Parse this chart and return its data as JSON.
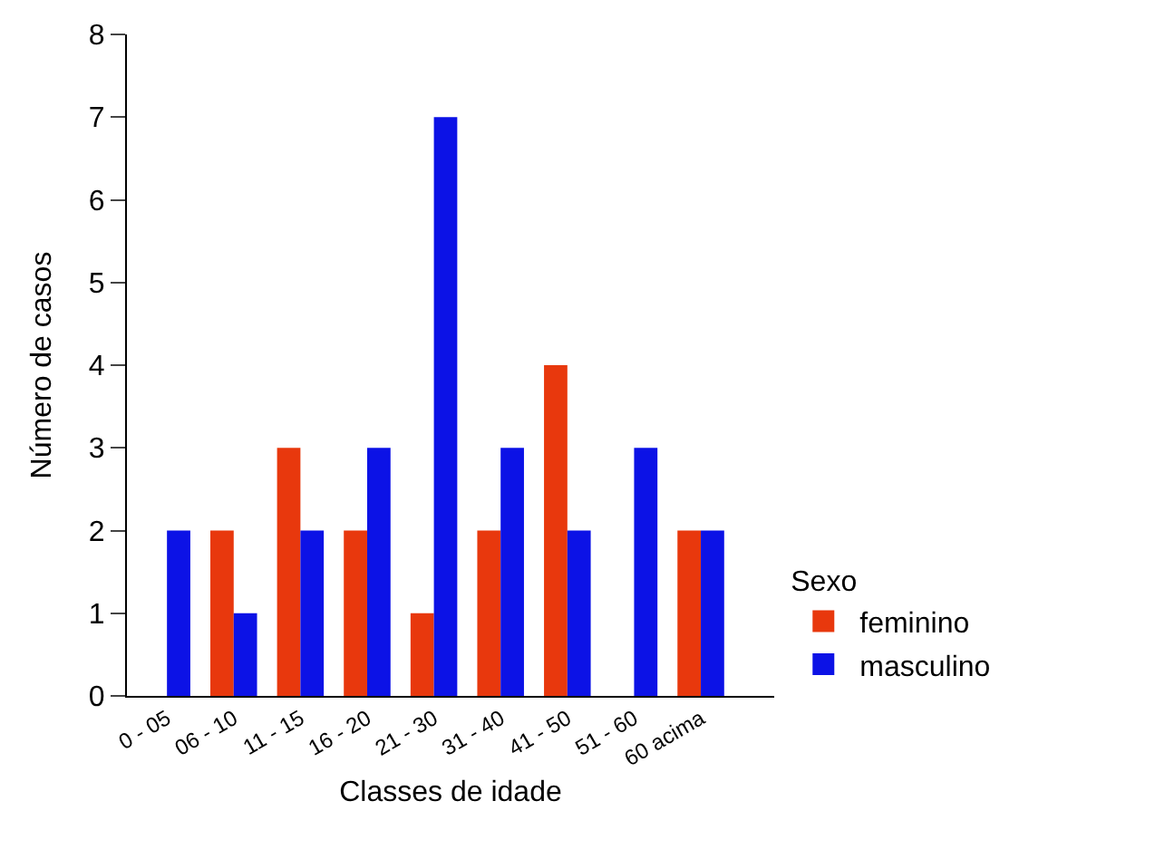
{
  "chart_data": {
    "type": "bar",
    "xlabel": "Classes de idade",
    "ylabel": "Número de casos",
    "legend_title": "Sexo",
    "categories": [
      "0 - 05",
      "06 - 10",
      "11 - 15",
      "16 - 20",
      "21 - 30",
      "31 - 40",
      "41 - 50",
      "51 - 60",
      "60 acima"
    ],
    "series": [
      {
        "name": "feminino",
        "color": "#e8380d",
        "values": [
          0,
          2,
          3,
          2,
          1,
          2,
          4,
          0,
          2
        ]
      },
      {
        "name": "masculino",
        "color": "#0c12e6",
        "values": [
          2,
          1,
          2,
          3,
          7,
          3,
          2,
          3,
          2
        ]
      }
    ],
    "ylim": [
      0,
      8
    ],
    "yticks": [
      0,
      1,
      2,
      3,
      4,
      5,
      6,
      7,
      8
    ],
    "grid": false,
    "legend": "bottom right"
  }
}
